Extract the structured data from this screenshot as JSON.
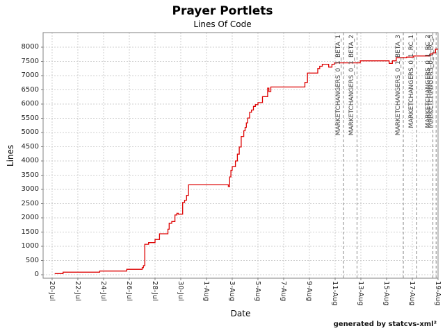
{
  "chart_data": {
    "type": "line",
    "step": true,
    "title": "Prayer Portlets",
    "subtitle": "Lines Of Code",
    "xlabel": "Date",
    "ylabel": "Lines",
    "footer": "generated by statcvs-xml²",
    "ylim": [
      0,
      8400
    ],
    "yticks": [
      0,
      500,
      1000,
      1500,
      2000,
      2500,
      3000,
      3500,
      4000,
      4500,
      5000,
      5500,
      6000,
      6500,
      7000,
      7500,
      8000
    ],
    "x_domain_days": [
      -0.7,
      30
    ],
    "xticks": [
      {
        "day": 0,
        "label": "20-Jul"
      },
      {
        "day": 2,
        "label": "22-Jul"
      },
      {
        "day": 4,
        "label": "24-Jul"
      },
      {
        "day": 6,
        "label": "26-Jul"
      },
      {
        "day": 8,
        "label": "28-Jul"
      },
      {
        "day": 10,
        "label": "30-Jul"
      },
      {
        "day": 12,
        "label": "1-Aug"
      },
      {
        "day": 14,
        "label": "3-Aug"
      },
      {
        "day": 16,
        "label": "5-Aug"
      },
      {
        "day": 18,
        "label": "7-Aug"
      },
      {
        "day": 20,
        "label": "9-Aug"
      },
      {
        "day": 22,
        "label": "11-Aug"
      },
      {
        "day": 24,
        "label": "13-Aug"
      },
      {
        "day": 26,
        "label": "15-Aug"
      },
      {
        "day": 28,
        "label": "17-Aug"
      },
      {
        "day": 30,
        "label": "19-Aug"
      }
    ],
    "grid": true,
    "legend": "none",
    "series": [
      {
        "name": "Lines Of Code",
        "color": "#dd0000",
        "points": [
          [
            0.2,
            40
          ],
          [
            0.85,
            90
          ],
          [
            3.7,
            130
          ],
          [
            5.8,
            190
          ],
          [
            7.0,
            250
          ],
          [
            7.1,
            320
          ],
          [
            7.2,
            1070
          ],
          [
            7.5,
            1130
          ],
          [
            8.0,
            1240
          ],
          [
            8.35,
            1440
          ],
          [
            9.0,
            1600
          ],
          [
            9.1,
            1810
          ],
          [
            9.3,
            1870
          ],
          [
            9.55,
            2100
          ],
          [
            9.7,
            2160
          ],
          [
            9.8,
            2130
          ],
          [
            10.15,
            2540
          ],
          [
            10.3,
            2620
          ],
          [
            10.45,
            2790
          ],
          [
            10.6,
            3160
          ],
          [
            13.7,
            3100
          ],
          [
            13.8,
            3440
          ],
          [
            13.9,
            3670
          ],
          [
            14.0,
            3800
          ],
          [
            14.25,
            4000
          ],
          [
            14.4,
            4240
          ],
          [
            14.55,
            4490
          ],
          [
            14.7,
            4860
          ],
          [
            14.9,
            5060
          ],
          [
            15.0,
            5180
          ],
          [
            15.1,
            5340
          ],
          [
            15.2,
            5510
          ],
          [
            15.35,
            5710
          ],
          [
            15.5,
            5790
          ],
          [
            15.65,
            5920
          ],
          [
            15.8,
            5980
          ],
          [
            16.0,
            6050
          ],
          [
            16.35,
            6260
          ],
          [
            16.75,
            6560
          ],
          [
            16.85,
            6440
          ],
          [
            17.0,
            6600
          ],
          [
            19.65,
            6760
          ],
          [
            19.85,
            7090
          ],
          [
            20.65,
            7250
          ],
          [
            20.8,
            7330
          ],
          [
            21.0,
            7400
          ],
          [
            21.5,
            7300
          ],
          [
            21.75,
            7400
          ],
          [
            21.95,
            7450
          ],
          [
            23.95,
            7520
          ],
          [
            26.2,
            7430
          ],
          [
            26.45,
            7520
          ],
          [
            26.75,
            7630
          ],
          [
            27.55,
            7650
          ],
          [
            28.1,
            7690
          ],
          [
            29.4,
            7760
          ],
          [
            29.6,
            7800
          ],
          [
            29.8,
            7930
          ],
          [
            30.0,
            7930
          ]
        ]
      }
    ],
    "releases": [
      {
        "day": 22.65,
        "label": "MARKETCHANGERS_0_1_BETA_1"
      },
      {
        "day": 23.7,
        "label": "MARKETCHANGERS_0_1_BETA_2"
      },
      {
        "day": 27.3,
        "label": "MARKETCHANGERS_0_1_BETA_3"
      },
      {
        "day": 28.35,
        "label": "MARKETCHANGERS_0_1_RC_1"
      },
      {
        "day": 29.6,
        "label": "MARKETCHANGERS_0_1_RC_2"
      },
      {
        "day": 29.85,
        "label": "MARKETCHANGERS_0_1_RC_3"
      }
    ],
    "colors": {
      "line": "#dd0000",
      "grid": "#cfcfcf",
      "release_marker": "#888888",
      "plot_border": "#808080",
      "tick_text": "#222222"
    }
  }
}
